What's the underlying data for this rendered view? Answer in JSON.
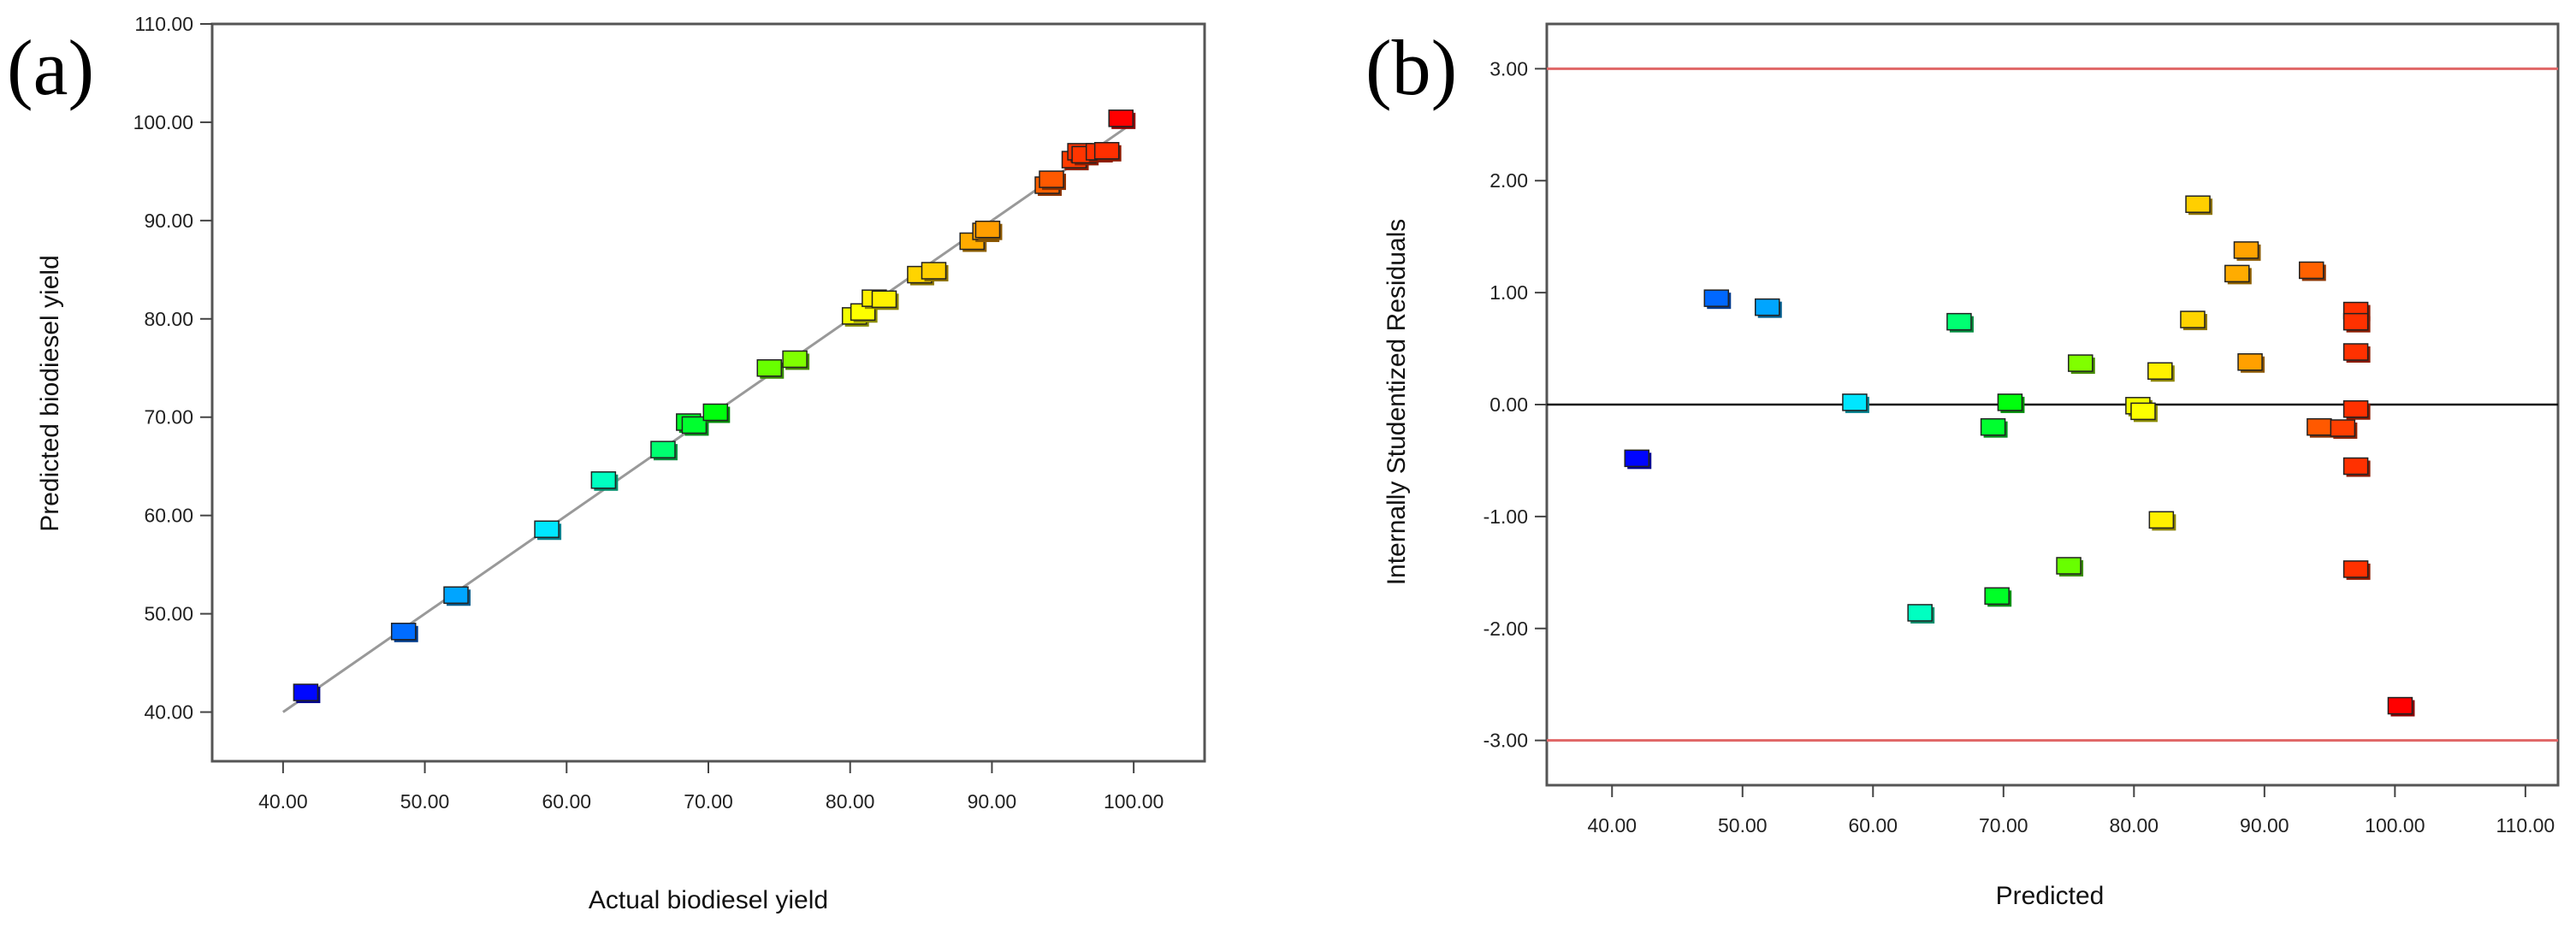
{
  "figure": {
    "panel_a_label": "(a)",
    "panel_b_label": "(b)"
  },
  "colors": {
    "frame": "#555555",
    "fit_line": "#999999",
    "zero_line": "#111111",
    "limit_line": "#e06666",
    "marker_outline": "#222222",
    "colormap": [
      "#0000ff",
      "#00a0ff",
      "#00ffff",
      "#00ff00",
      "#ffff00",
      "#ff8c00",
      "#ff0000"
    ]
  },
  "chart_data": [
    {
      "id": "a",
      "type": "scatter",
      "title": "",
      "xlabel": "Actual biodiesel yield",
      "ylabel": "Predicted biodiesel yield",
      "xlim": [
        35.0,
        105.0
      ],
      "ylim": [
        35.0,
        110.0
      ],
      "xticks": [
        40,
        50,
        60,
        70,
        80,
        90,
        100
      ],
      "yticks": [
        40,
        50,
        60,
        70,
        80,
        90,
        100,
        110
      ],
      "xtick_labels": [
        "40.00",
        "50.00",
        "60.00",
        "70.00",
        "80.00",
        "90.00",
        "100.00"
      ],
      "ytick_labels": [
        "40.00",
        "50.00",
        "60.00",
        "70.00",
        "80.00",
        "90.00",
        "100.00",
        "110.00"
      ],
      "fit_line": {
        "x": [
          40.0,
          100.0
        ],
        "y": [
          40.0,
          100.0
        ]
      },
      "points": [
        {
          "x": 41.6,
          "y": 42.0
        },
        {
          "x": 48.5,
          "y": 48.2
        },
        {
          "x": 52.2,
          "y": 51.9
        },
        {
          "x": 58.6,
          "y": 58.6
        },
        {
          "x": 62.6,
          "y": 63.6
        },
        {
          "x": 66.8,
          "y": 66.7
        },
        {
          "x": 68.6,
          "y": 69.5
        },
        {
          "x": 69.0,
          "y": 69.2
        },
        {
          "x": 70.5,
          "y": 70.5
        },
        {
          "x": 74.3,
          "y": 75.0
        },
        {
          "x": 76.1,
          "y": 75.9
        },
        {
          "x": 80.3,
          "y": 80.3
        },
        {
          "x": 80.9,
          "y": 80.7
        },
        {
          "x": 81.7,
          "y": 82.1
        },
        {
          "x": 82.4,
          "y": 82.0
        },
        {
          "x": 84.9,
          "y": 84.5
        },
        {
          "x": 85.9,
          "y": 84.9
        },
        {
          "x": 88.6,
          "y": 87.9
        },
        {
          "x": 89.5,
          "y": 88.9
        },
        {
          "x": 89.7,
          "y": 89.1
        },
        {
          "x": 93.9,
          "y": 93.6
        },
        {
          "x": 94.2,
          "y": 94.2
        },
        {
          "x": 95.8,
          "y": 96.2
        },
        {
          "x": 96.2,
          "y": 97.0
        },
        {
          "x": 96.5,
          "y": 96.7
        },
        {
          "x": 97.5,
          "y": 97.0
        },
        {
          "x": 98.1,
          "y": 97.1
        },
        {
          "x": 99.1,
          "y": 100.4
        }
      ]
    },
    {
      "id": "b",
      "type": "scatter",
      "title": "",
      "xlabel": "Predicted",
      "ylabel": "Internally Studentized Residuals",
      "xlim": [
        35.0,
        112.5
      ],
      "ylim": [
        -3.4,
        3.4
      ],
      "xticks": [
        40,
        50,
        60,
        70,
        80,
        90,
        100,
        110
      ],
      "yticks": [
        3,
        2,
        1,
        0,
        -1,
        -2,
        -3
      ],
      "xtick_labels": [
        "40.00",
        "50.00",
        "60.00",
        "70.00",
        "80.00",
        "90.00",
        "100.00",
        "110.00"
      ],
      "ytick_labels": [
        "3.00",
        "2.00",
        "1.00",
        "0.00",
        "-1.00",
        "-2.00",
        "-3.00"
      ],
      "reference_lines": [
        3.0,
        -3.0
      ],
      "zero_line": 0.0,
      "points": [
        {
          "x": 41.9,
          "y": -0.48
        },
        {
          "x": 48.0,
          "y": 0.95
        },
        {
          "x": 51.9,
          "y": 0.87
        },
        {
          "x": 58.6,
          "y": 0.02
        },
        {
          "x": 63.6,
          "y": -1.86
        },
        {
          "x": 66.6,
          "y": 0.74
        },
        {
          "x": 69.2,
          "y": -0.2
        },
        {
          "x": 69.5,
          "y": -1.71
        },
        {
          "x": 70.5,
          "y": 0.02
        },
        {
          "x": 75.0,
          "y": -1.44
        },
        {
          "x": 75.9,
          "y": 0.37
        },
        {
          "x": 80.3,
          "y": -0.01
        },
        {
          "x": 80.7,
          "y": -0.06
        },
        {
          "x": 82.0,
          "y": 0.3
        },
        {
          "x": 82.1,
          "y": -1.03
        },
        {
          "x": 84.5,
          "y": 0.76
        },
        {
          "x": 84.9,
          "y": 1.79
        },
        {
          "x": 87.9,
          "y": 1.17
        },
        {
          "x": 88.6,
          "y": 1.38
        },
        {
          "x": 88.9,
          "y": 0.38
        },
        {
          "x": 93.6,
          "y": 1.2
        },
        {
          "x": 94.2,
          "y": -0.2
        },
        {
          "x": 96.0,
          "y": -0.21
        },
        {
          "x": 97.0,
          "y": 0.84
        },
        {
          "x": 97.0,
          "y": 0.74
        },
        {
          "x": 97.0,
          "y": 0.47
        },
        {
          "x": 97.0,
          "y": -0.04
        },
        {
          "x": 97.0,
          "y": -0.55
        },
        {
          "x": 97.0,
          "y": -1.47
        },
        {
          "x": 100.4,
          "y": -2.69
        }
      ]
    }
  ]
}
